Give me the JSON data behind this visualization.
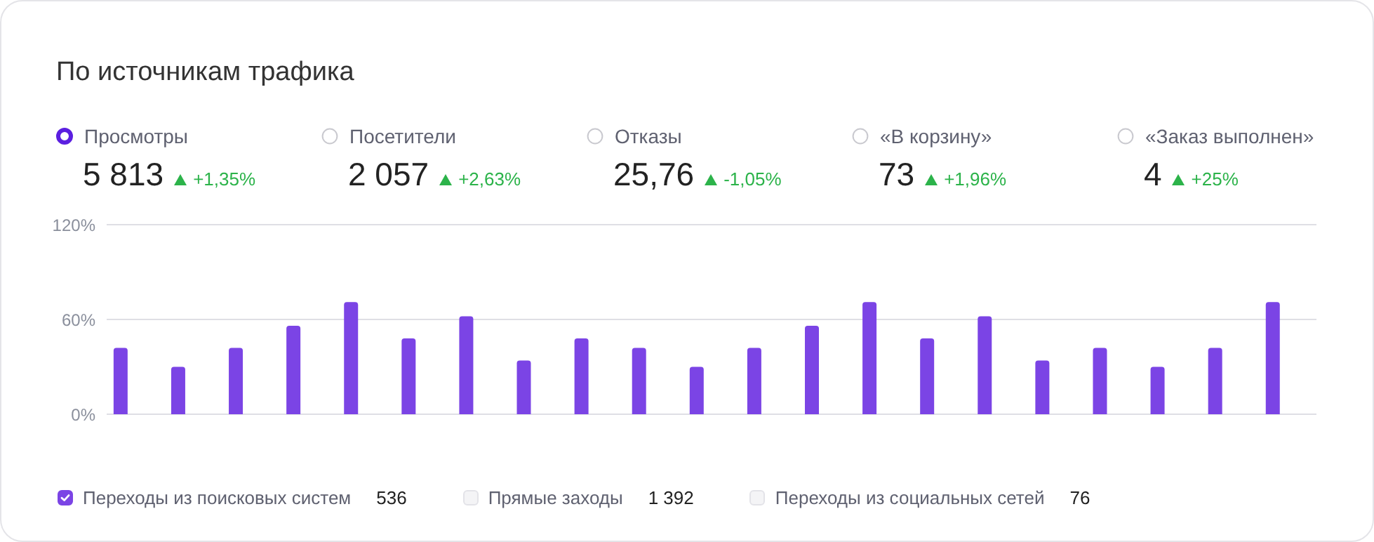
{
  "chart_data": {
    "type": "bar",
    "title": "По источникам трафика",
    "categories": [
      null,
      null,
      null,
      null,
      null,
      null,
      null,
      null,
      null,
      null,
      null,
      null,
      null,
      null,
      null,
      null,
      null,
      null,
      null,
      null,
      null
    ],
    "series": [
      {
        "name": "Переходы из поисковых систем",
        "color": "#7b44e5",
        "values": [
          42,
          30,
          42,
          56,
          71,
          48,
          62,
          34,
          48,
          42,
          30,
          42,
          56,
          71,
          48,
          62,
          34,
          42,
          30,
          42,
          71
        ]
      },
      {
        "name": "Прямые заходы",
        "color": "#f4f4f6",
        "values": [
          null,
          null,
          null,
          null,
          null,
          null,
          null,
          null,
          null,
          null,
          null,
          null,
          null,
          null,
          null,
          null,
          null,
          null,
          null,
          null,
          null
        ]
      },
      {
        "name": "Переходы из социальных сетей",
        "color": "#f4f4f6",
        "values": [
          null,
          null,
          null,
          null,
          null,
          null,
          null,
          null,
          null,
          null,
          null,
          null,
          null,
          null,
          null,
          null,
          null,
          null,
          null,
          null,
          null
        ]
      }
    ],
    "ylim": [
      0,
      120
    ],
    "yticks": [
      {
        "value": 0,
        "label": "0%"
      },
      {
        "value": 60,
        "label": "60%"
      },
      {
        "value": 120,
        "label": "120%"
      }
    ],
    "grid": "y",
    "legend": "bottom left",
    "annotations": [
      "Просмотры",
      "5 813",
      "+1,35%",
      "Посетители",
      "2 057",
      "+2,63%",
      "Отказы",
      "25,76",
      "-1,05%",
      "«В корзину»",
      "73",
      "+1,96%",
      "«Заказ выполнен»",
      "4",
      "+25%",
      "536",
      "1 392",
      "76"
    ]
  }
}
